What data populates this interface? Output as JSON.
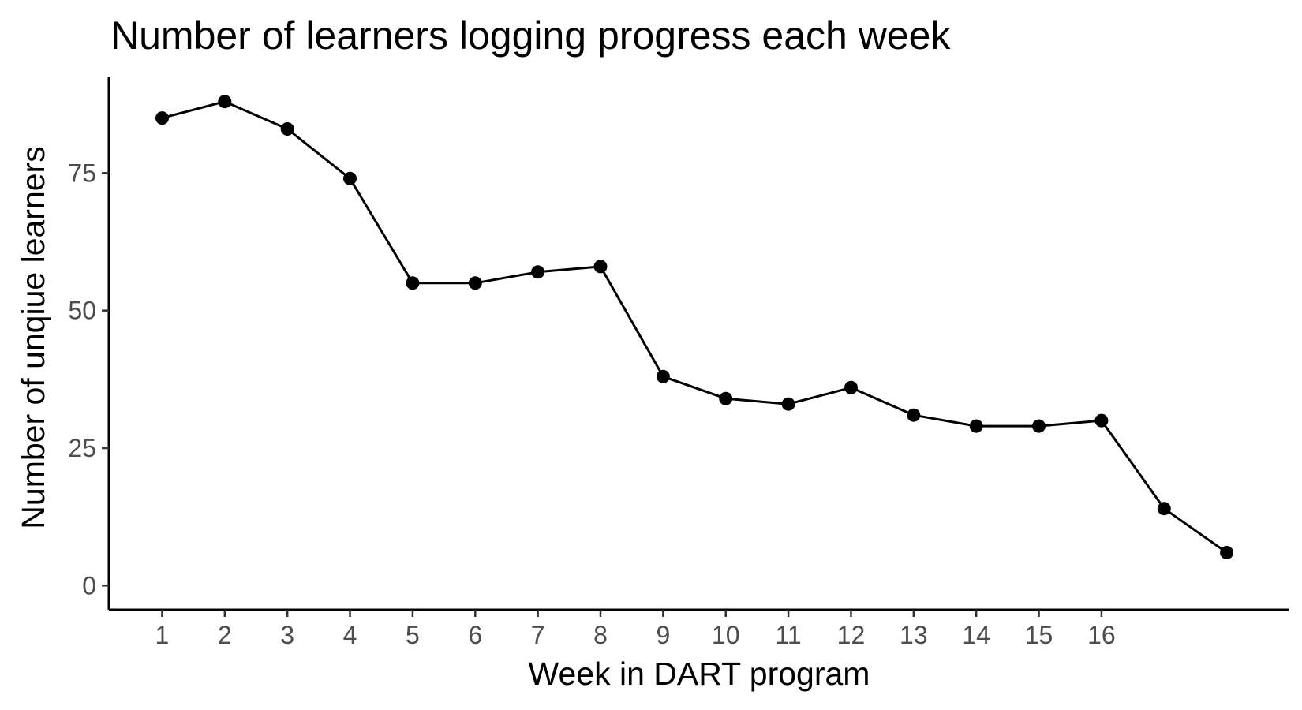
{
  "chart_data": {
    "type": "line",
    "title": "Number of learners logging progress each week",
    "xlabel": "Week in DART program",
    "ylabel": "Number of unqiue learners",
    "x": [
      1,
      2,
      3,
      4,
      5,
      6,
      7,
      8,
      9,
      10,
      11,
      12,
      13,
      14,
      15,
      16,
      17,
      18
    ],
    "values": [
      85,
      88,
      83,
      74,
      55,
      55,
      57,
      58,
      38,
      34,
      33,
      36,
      31,
      29,
      29,
      30,
      14,
      6
    ],
    "x_tick_labels": [
      "1",
      "2",
      "3",
      "4",
      "5",
      "6",
      "7",
      "8",
      "9",
      "10",
      "11",
      "12",
      "13",
      "14",
      "15",
      "16"
    ],
    "y_tick_labels": [
      "0",
      "25",
      "50",
      "75"
    ],
    "y_ticks": [
      0,
      25,
      50,
      75
    ],
    "xlim": [
      0.15,
      19.0
    ],
    "ylim": [
      -4.4,
      92.4
    ],
    "grid": false,
    "legend": false,
    "line_color": "#000000",
    "point_color": "#000000",
    "tick_label_color": "#4d4d4d"
  }
}
